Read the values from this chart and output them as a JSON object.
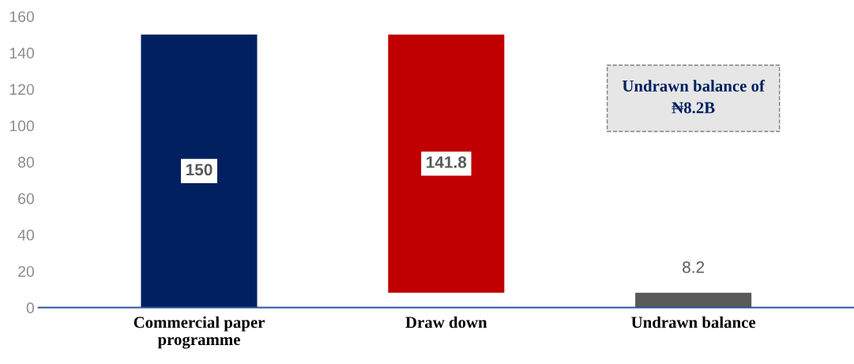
{
  "chart_data": {
    "type": "bar",
    "categories": [
      "Commercial paper programme",
      "Draw down",
      "Undrawn balance"
    ],
    "values": [
      150,
      141.8,
      8.2
    ],
    "base": [
      0,
      8.2,
      0
    ],
    "colors": [
      "#002060",
      "#c00000",
      "#595959"
    ],
    "value_labels": [
      "150",
      "141.8",
      "8.2"
    ],
    "ylim": [
      0,
      160
    ],
    "yticks": [
      0,
      20,
      40,
      60,
      80,
      100,
      120,
      140,
      160
    ],
    "grid": false,
    "legend": false,
    "annotations": [
      "Undrawn balance of ₦8.2B"
    ]
  }
}
